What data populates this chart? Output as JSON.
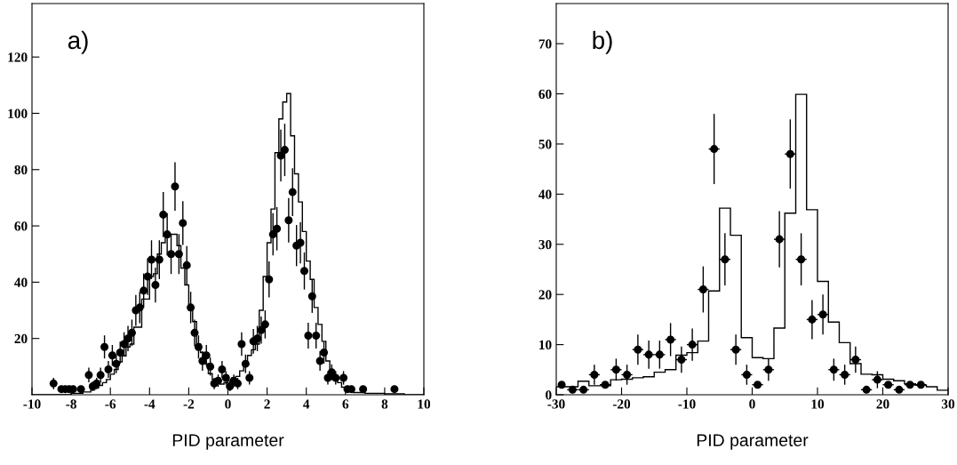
{
  "chart_data": [
    {
      "type": "histogram",
      "xlabel": "PID parameter",
      "annotations": [
        "a)"
      ],
      "xlim": [
        -10,
        10
      ],
      "ylim": [
        0,
        139
      ],
      "xticks": [
        -10,
        -8,
        -6,
        -4,
        -2,
        0,
        2,
        4,
        6,
        8,
        10
      ],
      "yticks": [
        20,
        40,
        60,
        80,
        100,
        120
      ],
      "marker": "circle",
      "series": [
        {
          "color": "#000000",
          "bins": [
            -10.0,
            -9.8,
            -9.6,
            -9.4,
            -9.2,
            -9.0,
            -8.8,
            -8.6,
            -8.4,
            -8.2,
            -8.0,
            -7.8,
            -7.6,
            -7.4,
            -7.2,
            -7.0,
            -6.8,
            -6.6,
            -6.4,
            -6.2,
            -6.0,
            -5.8,
            -5.6,
            -5.4,
            -5.2,
            -5.0,
            -4.8,
            -4.6,
            -4.4,
            -4.2,
            -4.0,
            -3.8,
            -3.6,
            -3.4,
            -3.2,
            -3.0,
            -2.8,
            -2.6,
            -2.4,
            -2.2,
            -2.0,
            -1.8,
            -1.6,
            -1.4,
            -1.2,
            -1.0,
            -0.8,
            -0.6,
            -0.4,
            -0.2,
            0.0,
            0.2,
            0.4,
            0.6,
            0.8,
            1.0,
            1.2,
            1.4,
            1.6,
            1.8,
            2.0,
            2.2,
            2.4,
            2.6,
            2.8,
            3.0,
            3.2,
            3.4,
            3.6,
            3.8,
            4.0,
            4.2,
            4.4,
            4.6,
            4.8,
            5.0,
            5.2,
            5.4,
            5.6,
            5.8,
            6.0,
            6.2,
            6.4,
            6.6,
            6.8,
            7.0,
            7.2,
            7.4,
            7.6,
            7.8,
            8.0,
            8.2,
            8.4,
            8.6,
            8.8,
            9.0,
            9.2,
            9.4,
            9.6,
            9.8,
            10.0
          ],
          "values": [
            0,
            0,
            0,
            0,
            0,
            0,
            0,
            0,
            0,
            0,
            0.5,
            0.5,
            0.5,
            1,
            1,
            1.7,
            2.4,
            3.3,
            4.3,
            5.4,
            7.3,
            9,
            11.7,
            13.8,
            17,
            18,
            24,
            24,
            34,
            34,
            42,
            43,
            50,
            54,
            56,
            57,
            57,
            53,
            45,
            39,
            30,
            26,
            18,
            15,
            11,
            7.5,
            5.4,
            4.3,
            3.8,
            4.3,
            5,
            6,
            6.5,
            8.5,
            10.6,
            14,
            16,
            18,
            30,
            42,
            54,
            66,
            86,
            98,
            104,
            107,
            92,
            78.5,
            68.5,
            58,
            47.5,
            41,
            31,
            25,
            19,
            12,
            8.5,
            6.4,
            4.3,
            2.7,
            1.7,
            1.2,
            0.8,
            0.8,
            0.8,
            0.5,
            0.5,
            0.5,
            0.5,
            0.5,
            0.3,
            0.3,
            0.3,
            0.3,
            0.3,
            0,
            0,
            0,
            0,
            0
          ]
        },
        {
          "type": "scatter",
          "color": "#000000",
          "x": [
            -8.9,
            -8.5,
            -8.3,
            -8.1,
            -7.9,
            -7.5,
            -7.1,
            -6.9,
            -6.7,
            -6.5,
            -6.3,
            -6.1,
            -5.9,
            -5.7,
            -5.5,
            -5.3,
            -5.1,
            -4.9,
            -4.7,
            -4.5,
            -4.3,
            -4.1,
            -3.9,
            -3.7,
            -3.5,
            -3.3,
            -3.1,
            -2.9,
            -2.7,
            -2.5,
            -2.3,
            -2.1,
            -1.9,
            -1.7,
            -1.5,
            -1.3,
            -1.1,
            -0.9,
            -0.7,
            -0.5,
            -0.3,
            -0.1,
            0.1,
            0.3,
            0.5,
            0.7,
            0.9,
            1.1,
            1.3,
            1.5,
            1.7,
            1.9,
            2.1,
            2.3,
            2.5,
            2.7,
            2.9,
            3.1,
            3.3,
            3.5,
            3.7,
            3.9,
            4.1,
            4.3,
            4.5,
            4.7,
            4.9,
            5.1,
            5.3,
            5.5,
            5.9,
            6.1,
            6.3,
            6.9,
            8.5
          ],
          "values": [
            4,
            2,
            2,
            2,
            2,
            2,
            7,
            3,
            4,
            7,
            17,
            9,
            14,
            11,
            15,
            18,
            20,
            22,
            30,
            31,
            37,
            42,
            48,
            39,
            48,
            64,
            57,
            50,
            74,
            50,
            61,
            46,
            31,
            22,
            17,
            12,
            14,
            10,
            4,
            5,
            9,
            6,
            3,
            5,
            4,
            18,
            11,
            6,
            19,
            20,
            23,
            25,
            41,
            57,
            59,
            85,
            87,
            62,
            72,
            53,
            54,
            44,
            21,
            35,
            21,
            12,
            15,
            6,
            8,
            6,
            6,
            2,
            2,
            2,
            2
          ],
          "errors": [
            2,
            null,
            null,
            null,
            null,
            null,
            2.6,
            1.7,
            2,
            2.6,
            4.1,
            3,
            3.7,
            3.3,
            3.9,
            4.2,
            4.5,
            4.7,
            5.5,
            5.6,
            6.1,
            6.5,
            6.9,
            6.2,
            6.9,
            8,
            7.5,
            7.1,
            8.6,
            7.1,
            7.8,
            6.8,
            5.6,
            4.7,
            4.1,
            3.5,
            3.7,
            3.2,
            2,
            2.2,
            3,
            2.4,
            1.7,
            2.2,
            2,
            4.2,
            3.3,
            2.4,
            4.4,
            4.5,
            4.8,
            5,
            6.4,
            7.5,
            7.7,
            9.2,
            9.3,
            7.9,
            8.5,
            7.3,
            7.3,
            6.6,
            4.6,
            5.9,
            4.6,
            3.5,
            3.9,
            2.4,
            2.8,
            2.4,
            2.4,
            null,
            null,
            null,
            null
          ]
        }
      ]
    },
    {
      "type": "histogram",
      "xlabel": "PID parameter",
      "annotations": [
        "b)"
      ],
      "xlim": [
        -30,
        30
      ],
      "ylim": [
        0,
        78
      ],
      "xticks": [
        -30,
        -20,
        -10,
        0,
        10,
        20,
        30
      ],
      "yticks": [
        0,
        10,
        20,
        30,
        40,
        50,
        60,
        70
      ],
      "marker": "circle",
      "series": [
        {
          "color": "#000000",
          "bins": [
            -30,
            -28.33,
            -26.67,
            -25,
            -23.33,
            -21.67,
            -20,
            -18.33,
            -16.67,
            -15,
            -13.33,
            -11.67,
            -10,
            -8.33,
            -6.67,
            -5,
            -3.33,
            -1.67,
            0,
            1.67,
            3.33,
            5,
            6.67,
            8.33,
            10,
            11.67,
            13.33,
            15,
            16.67,
            18.33,
            20,
            21.67,
            23.33,
            25,
            26.67,
            28.33,
            30
          ],
          "values": [
            1.6,
            1.6,
            2.7,
            1.8,
            1.8,
            3,
            3.1,
            3.4,
            3.6,
            4.5,
            5,
            7.9,
            8.4,
            10.7,
            20.7,
            37.2,
            31.8,
            11.4,
            7.4,
            7.2,
            13.3,
            36.2,
            59.9,
            36.9,
            22.6,
            14.5,
            10.4,
            6.2,
            4.1,
            4,
            3.1,
            2.8,
            2.2,
            1.9,
            1.6,
            0.9
          ]
        },
        {
          "type": "scatter",
          "color": "#000000",
          "x": [
            -29.17,
            -27.5,
            -25.83,
            -24.17,
            -22.5,
            -20.83,
            -19.17,
            -17.5,
            -15.83,
            -14.17,
            -12.5,
            -10.83,
            -9.17,
            -7.5,
            -5.83,
            -4.17,
            -2.5,
            -0.83,
            0.83,
            2.5,
            4.17,
            5.83,
            7.5,
            9.17,
            10.83,
            12.5,
            14.17,
            15.83,
            17.5,
            19.17,
            20.83,
            22.5,
            24.17,
            25.83
          ],
          "values": [
            2,
            1,
            1,
            4,
            2,
            5,
            4,
            9,
            8,
            8,
            11,
            7,
            10,
            21,
            49,
            27,
            9,
            4,
            2,
            5,
            31,
            48,
            27,
            15,
            16,
            5,
            4,
            7,
            1,
            3,
            2,
            1,
            2,
            2
          ],
          "errors": [
            null,
            null,
            null,
            2,
            null,
            2.2,
            2,
            3,
            2.8,
            2.8,
            3.3,
            2.6,
            3.2,
            4.6,
            7,
            5.2,
            3,
            2,
            null,
            2.2,
            5.6,
            6.9,
            5.2,
            3.9,
            4,
            2.2,
            2,
            2.6,
            null,
            1.7,
            null,
            null,
            null,
            null
          ],
          "xerrors": [
            null,
            0.83,
            0.83,
            0.83,
            0.83,
            0.83,
            0.83,
            0.83,
            0.83,
            0.83,
            0.83,
            0.83,
            0.83,
            0.83,
            0.83,
            0.83,
            0.83,
            0.83,
            0.83,
            0.83,
            0.83,
            0.83,
            0.83,
            0.83,
            0.83,
            0.83,
            0.83,
            0.83,
            0.83,
            0.83,
            0.83,
            0.83,
            0.83,
            0.83
          ]
        }
      ]
    }
  ]
}
